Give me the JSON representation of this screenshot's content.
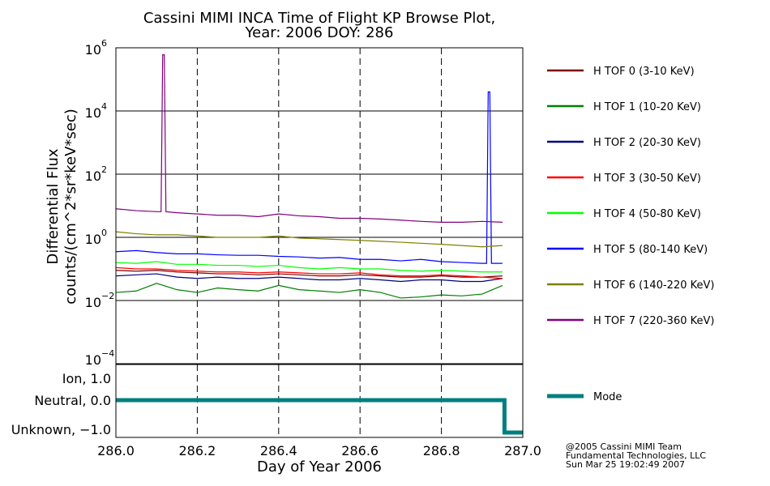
{
  "chart_data": {
    "type": "line",
    "title": "Cassini MIMI INCA Time of Flight KP Browse Plot,",
    "subtitle": "Year: 2006 DOY: 286",
    "xlabel": "Day of Year 2006",
    "ylabel_line1": "Differential Flux",
    "ylabel_line2": "counts/(cm^2*sr*keV*sec)",
    "xlim": [
      286.0,
      287.0
    ],
    "ylim_log10": [
      -4,
      6
    ],
    "x_ticks": [
      "286.0",
      "286.2",
      "286.4",
      "286.6",
      "286.8",
      "287.0"
    ],
    "y_ticks": [
      {
        "base": "10",
        "exp": "6"
      },
      {
        "base": "10",
        "exp": "4"
      },
      {
        "base": "10",
        "exp": "2"
      },
      {
        "base": "10",
        "exp": "0"
      },
      {
        "base": "10",
        "exp": "−2"
      },
      {
        "base": "10",
        "exp": "−4"
      }
    ],
    "grid": true,
    "legend_position": "right",
    "x": [
      286.0,
      286.05,
      286.1,
      286.15,
      286.2,
      286.25,
      286.3,
      286.35,
      286.4,
      286.45,
      286.5,
      286.55,
      286.6,
      286.65,
      286.7,
      286.75,
      286.8,
      286.85,
      286.9,
      286.95
    ],
    "series": [
      {
        "name": "H TOF 0 (3-10 KeV)",
        "color": "#7f0000",
        "values": [
          0.09,
          0.085,
          0.09,
          0.08,
          0.075,
          0.07,
          0.07,
          0.065,
          0.07,
          0.065,
          0.06,
          0.06,
          0.065,
          0.06,
          0.055,
          0.055,
          0.06,
          0.055,
          0.055,
          0.06
        ]
      },
      {
        "name": "H TOF 1 (10-20 KeV)",
        "color": "#007f00",
        "values": [
          0.018,
          0.02,
          0.035,
          0.022,
          0.018,
          0.025,
          0.022,
          0.02,
          0.03,
          0.022,
          0.02,
          0.018,
          0.022,
          0.018,
          0.012,
          0.013,
          0.015,
          0.014,
          0.016,
          0.03
        ]
      },
      {
        "name": "H TOF 2 (20-30 KeV)",
        "color": "#00007f",
        "values": [
          0.06,
          0.065,
          0.07,
          0.055,
          0.05,
          0.055,
          0.05,
          0.05,
          0.055,
          0.05,
          0.045,
          0.045,
          0.05,
          0.045,
          0.04,
          0.045,
          0.045,
          0.04,
          0.04,
          0.05
        ]
      },
      {
        "name": "H TOF 3 (30-50 KeV)",
        "color": "#ff0000",
        "values": [
          0.11,
          0.1,
          0.1,
          0.09,
          0.085,
          0.08,
          0.08,
          0.075,
          0.08,
          0.075,
          0.07,
          0.07,
          0.075,
          0.065,
          0.06,
          0.06,
          0.065,
          0.06,
          0.055,
          0.05
        ]
      },
      {
        "name": "H TOF 4 (50-80 KeV)",
        "color": "#00ff00",
        "values": [
          0.16,
          0.15,
          0.17,
          0.14,
          0.14,
          0.13,
          0.13,
          0.12,
          0.13,
          0.11,
          0.1,
          0.11,
          0.1,
          0.1,
          0.09,
          0.085,
          0.09,
          0.085,
          0.08,
          0.08
        ]
      },
      {
        "name": "H TOF 5 (80-140 KeV)",
        "color": "#0000ff",
        "values": [
          0.35,
          0.38,
          0.33,
          0.3,
          0.3,
          0.28,
          0.27,
          0.27,
          0.25,
          0.24,
          0.22,
          0.23,
          0.2,
          0.2,
          0.18,
          0.2,
          0.17,
          0.16,
          0.15,
          0.15
        ]
      },
      {
        "name": "H TOF 6 (140-220 KeV)",
        "color": "#7f7f00",
        "values": [
          1.5,
          1.3,
          1.2,
          1.2,
          1.1,
          1.0,
          1.0,
          1.0,
          1.1,
          0.95,
          0.9,
          0.85,
          0.8,
          0.75,
          0.7,
          0.65,
          0.6,
          0.55,
          0.5,
          0.55
        ]
      },
      {
        "name": "H TOF 7 (220-360 KeV)",
        "color": "#7f007f",
        "values": [
          8,
          7,
          6.5,
          6,
          5.5,
          5,
          5,
          4.5,
          5.5,
          4.8,
          4.5,
          4,
          4,
          3.8,
          3.5,
          3.2,
          3,
          3,
          3.2,
          3
        ]
      }
    ],
    "spikes": [
      {
        "series": 7,
        "x": 286.115,
        "peak": 600000
      },
      {
        "series": 5,
        "x": 286.915,
        "peak": 40000
      }
    ],
    "mode_panel": {
      "legend": "Mode",
      "color": "#007f7f",
      "y_ticks": [
        "Ion, 1.0",
        "Neutral, 0.0",
        "Unknown, −1.0"
      ],
      "steps": [
        {
          "x": 286.0,
          "value": 0
        },
        {
          "x": 286.955,
          "value": 0
        },
        {
          "x": 286.955,
          "value": -1
        },
        {
          "x": 287.0,
          "value": -1
        }
      ]
    }
  },
  "footer": [
    "@2005 Cassini MIMI Team",
    "Fundamental Technologies, LLC",
    "Sun Mar 25 19:02:49 2007"
  ]
}
